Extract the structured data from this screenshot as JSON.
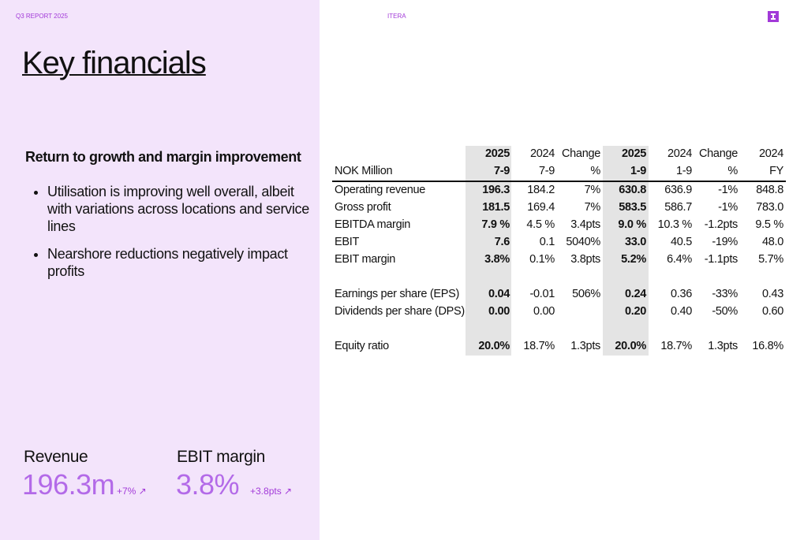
{
  "header": {
    "report": "Q3 REPORT 2025",
    "brand": "ITERA"
  },
  "title": "Key financials",
  "summary": {
    "heading": "Return to growth and margin improvement",
    "bullets": [
      "Utilisation is improving well overall, albeit with variations across locations and service lines",
      "Nearshore reductions negatively impact profits"
    ]
  },
  "kpis": [
    {
      "label": "Revenue",
      "value": "196.3m",
      "change": "+7% ↗"
    },
    {
      "label": "EBIT margin",
      "value": "3.8%",
      "change": "+3.8pts ↗"
    }
  ],
  "table": {
    "header_top": [
      "2025",
      "2024",
      "Change",
      "2025",
      "2024",
      "Change",
      "2024"
    ],
    "header_bottom": [
      "NOK Million",
      "7-9",
      "7-9",
      "%",
      "1-9",
      "1-9",
      "%",
      "FY"
    ],
    "rows": [
      [
        "Operating revenue",
        "196.3",
        "184.2",
        "7%",
        "630.8",
        "636.9",
        "-1%",
        "848.8"
      ],
      [
        "Gross profit",
        "181.5",
        "169.4",
        "7%",
        "583.5",
        "586.7",
        "-1%",
        "783.0"
      ],
      [
        "EBITDA margin",
        "7.9 %",
        "4.5 %",
        "3.4pts",
        "9.0 %",
        "10.3 %",
        "-1.2pts",
        "9.5 %"
      ],
      [
        "EBIT",
        "7.6",
        "0.1",
        "5040%",
        "33.0",
        "40.5",
        "-19%",
        "48.0"
      ],
      [
        "EBIT margin",
        "3.8%",
        "0.1%",
        "3.8pts",
        "5.2%",
        "6.4%",
        "-1.1pts",
        "5.7%"
      ],
      [
        "Earnings per share (EPS)",
        "0.04",
        "-0.01",
        "506%",
        "0.24",
        "0.36",
        "-33%",
        "0.43"
      ],
      [
        "Dividends per share (DPS)",
        "0.00",
        "0.00",
        null,
        "0.20",
        "0.40",
        "-50%",
        "0.60"
      ],
      [
        "Equity ratio",
        "20.0%",
        "18.7%",
        "1.3pts",
        "20.0%",
        "18.7%",
        "1.3pts",
        "16.8%"
      ]
    ]
  }
}
